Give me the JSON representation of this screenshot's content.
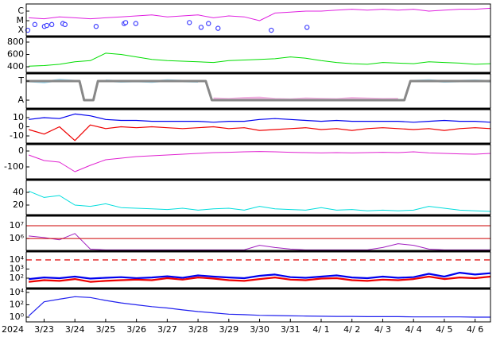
{
  "chart_data": [
    {
      "type": "line",
      "xlim": [
        -0.58,
        14.5
      ],
      "ylim": [
        -3.42,
        -6.75
      ],
      "yticks": [
        {
          "value": -4,
          "label": "X"
        },
        {
          "value": -5,
          "label": "M"
        },
        {
          "value": -6,
          "label": "C"
        }
      ],
      "x": [
        -0.5,
        0,
        0.5,
        1,
        1.5,
        2,
        2.5,
        3,
        3.5,
        4,
        4.5,
        5,
        5.5,
        6,
        6.5,
        7,
        7.5,
        8,
        8.5,
        9,
        9.5,
        10,
        10.5,
        11,
        11.5,
        12,
        12.5,
        13,
        13.5,
        14,
        14.5
      ],
      "series": [
        {
          "color": "#e020e0",
          "values": [
            -5.3,
            -5.2,
            -5.4,
            -5.3,
            -5.2,
            -5.3,
            -5.4,
            -5.5,
            -5.6,
            -5.4,
            -5.5,
            -5.6,
            -5.3,
            -5.5,
            -5.4,
            -5.0,
            -5.8,
            -5.9,
            -6.0,
            -6.0,
            -6.1,
            -6.2,
            -6.1,
            -6.2,
            -6.1,
            -6.2,
            -6.0,
            -6.1,
            -6.2,
            -6.2,
            -6.3
          ]
        },
        {
          "color": "#4040ff",
          "marker": "circle",
          "x": [
            -0.53,
            -0.3,
            0.01,
            0.09,
            0.25,
            0.61,
            0.68,
            1.69,
            2.6,
            2.65,
            2.98,
            4.72,
            5.1,
            5.34,
            5.65,
            7.38,
            8.54
          ],
          "values": [
            -4.0,
            -4.6,
            -4.4,
            -4.5,
            -4.6,
            -4.7,
            -4.6,
            -4.4,
            -4.7,
            -4.8,
            -4.7,
            -4.8,
            -4.3,
            -4.7,
            -4.2,
            -4.0,
            -4.3
          ]
        }
      ]
    },
    {
      "type": "line",
      "xlim": [
        -0.58,
        14.5
      ],
      "ylim": [
        310,
        877
      ],
      "yticks": [
        400,
        600,
        800
      ],
      "x": [
        -0.5,
        0,
        0.5,
        1,
        1.5,
        2,
        2.5,
        3,
        3.5,
        4,
        4.5,
        5,
        5.5,
        6,
        6.5,
        7,
        7.5,
        8,
        8.5,
        9,
        9.5,
        10,
        10.5,
        11,
        11.5,
        12,
        12.5,
        13,
        13.5,
        14,
        14.5
      ],
      "series": [
        {
          "color": "#00dd00",
          "values": [
            410,
            420,
            440,
            480,
            500,
            620,
            600,
            560,
            520,
            500,
            490,
            480,
            470,
            500,
            510,
            520,
            530,
            560,
            540,
            500,
            470,
            450,
            440,
            470,
            460,
            450,
            480,
            470,
            460,
            440,
            450
          ]
        }
      ]
    },
    {
      "type": "line",
      "xlim": [
        -0.58,
        14.5
      ],
      "ylim": [
        -0.417,
        1.375
      ],
      "yticks": [
        {
          "value": 1,
          "label": "T"
        },
        {
          "value": 0,
          "label": "A"
        }
      ],
      "x": [
        -0.5,
        0,
        0.5,
        1,
        1.5,
        2,
        2.5,
        3,
        3.5,
        4,
        4.5,
        5,
        5.5,
        6,
        6.5,
        7,
        7.5,
        8,
        8.5,
        9,
        9.5,
        10,
        10.5,
        11,
        11.5,
        12,
        12.5,
        13,
        13.5,
        14,
        14.5
      ],
      "series": [
        {
          "color": "#9ad8f0",
          "values": [
            1.0,
            0.95,
            1.05,
            1.0,
            null,
            1.02,
            0.98,
            1.0,
            0.97,
            1.03,
            1.0,
            0.98,
            null,
            null,
            null,
            null,
            null,
            null,
            null,
            null,
            null,
            null,
            null,
            null,
            null,
            1.0,
            1.03,
            0.98,
            1.0,
            1.02,
            0.99
          ]
        },
        {
          "color": "#f0b0e0",
          "values": [
            null,
            null,
            null,
            null,
            0.05,
            null,
            null,
            null,
            null,
            null,
            null,
            null,
            0.08,
            0.05,
            0.1,
            0.12,
            0.05,
            0.03,
            0.08,
            0.06,
            0.04,
            0.1,
            0.07,
            0.05,
            0.06,
            null,
            null,
            null,
            null,
            null,
            null
          ]
        },
        {
          "color": "#888888",
          "x": [
            -0.58,
            1.15,
            1.3,
            1.6,
            1.75,
            5.25,
            5.45,
            11.7,
            11.9,
            14.5
          ],
          "values": [
            1,
            1,
            0,
            0,
            1,
            1,
            0,
            0,
            1,
            1
          ]
        }
      ]
    },
    {
      "type": "line",
      "xlim": [
        -0.58,
        14.5
      ],
      "ylim": [
        -17.8,
        18.7
      ],
      "yticks": [
        -10,
        0,
        10
      ],
      "x": [
        -0.5,
        0,
        0.5,
        1,
        1.5,
        2,
        2.5,
        3,
        3.5,
        4,
        4.5,
        5,
        5.5,
        6,
        6.5,
        7,
        7.5,
        8,
        8.5,
        9,
        9.5,
        10,
        10.5,
        11,
        11.5,
        12,
        12.5,
        13,
        13.5,
        14,
        14.5
      ],
      "series": [
        {
          "color": "#0000ee",
          "values": [
            8,
            10,
            9,
            14,
            12,
            8,
            7,
            7,
            6,
            6,
            6,
            6,
            5,
            6,
            6,
            8,
            9,
            8,
            7,
            6,
            7,
            6,
            6,
            6,
            6,
            5,
            6,
            7,
            6,
            6,
            5
          ]
        },
        {
          "color": "#ee0000",
          "values": [
            -3,
            -8,
            0,
            -15,
            2,
            -2,
            0,
            -1,
            0,
            -1,
            -2,
            -1,
            0,
            -2,
            -1,
            -4,
            -3,
            -2,
            -1,
            -3,
            -2,
            -4,
            -2,
            -1,
            -2,
            -3,
            -2,
            -4,
            -2,
            -1,
            -2
          ]
        }
      ]
    },
    {
      "type": "line",
      "xlim": [
        -0.58,
        14.5
      ],
      "ylim": [
        -175,
        40
      ],
      "yticks": [
        -100,
        0
      ],
      "x": [
        -0.5,
        0,
        0.5,
        1,
        1.5,
        2,
        2.5,
        3,
        3.5,
        4,
        4.5,
        5,
        5.5,
        6,
        6.5,
        7,
        7.5,
        8,
        8.5,
        9,
        9.5,
        10,
        10.5,
        11,
        11.5,
        12,
        12.5,
        13,
        13.5,
        14,
        14.5
      ],
      "series": [
        {
          "color": "#e020d0",
          "values": [
            -25,
            -60,
            -70,
            -130,
            -90,
            -55,
            -45,
            -35,
            -30,
            -25,
            -20,
            -15,
            -10,
            -8,
            -5,
            -3,
            -5,
            -8,
            -10,
            -12,
            -10,
            -12,
            -10,
            -8,
            -10,
            -5,
            -12,
            -15,
            -18,
            -20,
            -15
          ]
        }
      ]
    },
    {
      "type": "line",
      "xlim": [
        -0.58,
        14.5
      ],
      "ylim": [
        5,
        58.75
      ],
      "yticks": [
        20,
        40
      ],
      "x": [
        -0.5,
        0,
        0.5,
        1,
        1.5,
        2,
        2.5,
        3,
        3.5,
        4,
        4.5,
        5,
        5.5,
        6,
        6.5,
        7,
        7.5,
        8,
        8.5,
        9,
        9.5,
        10,
        10.5,
        11,
        11.5,
        12,
        12.5,
        13,
        13.5,
        14,
        14.5
      ],
      "series": [
        {
          "color": "#00dddd",
          "values": [
            42,
            32,
            35,
            20,
            18,
            22,
            16,
            15,
            14,
            13,
            15,
            12,
            14,
            15,
            12,
            18,
            14,
            13,
            12,
            16,
            12,
            13,
            11,
            12,
            11,
            12,
            18,
            15,
            12,
            11,
            10
          ]
        }
      ]
    },
    {
      "type": "line",
      "xlim": [
        -0.58,
        14.5
      ],
      "log": true,
      "ylim": [
        120000,
        56000000
      ],
      "yticks": [
        {
          "value": 1000000,
          "label": "10⁶"
        },
        {
          "value": 10000000,
          "label": "10⁷"
        }
      ],
      "grid": true,
      "grid_color": "#cc0000",
      "x": [
        -0.5,
        0,
        0.5,
        1,
        1.5,
        2,
        2.5,
        3,
        3.5,
        4,
        4.5,
        5,
        5.5,
        6,
        6.5,
        7,
        7.5,
        8,
        8.5,
        9,
        9.5,
        10,
        10.5,
        11,
        11.5,
        12,
        12.5,
        13,
        13.5,
        14,
        14.5
      ],
      "series": [
        {
          "color": "#a020c0",
          "values": [
            1600000,
            1200000,
            800000,
            2500000,
            150000,
            130000,
            130000,
            130000,
            130000,
            130000,
            130000,
            130000,
            130000,
            130000,
            130000,
            300000,
            200000,
            150000,
            130000,
            130000,
            130000,
            130000,
            130000,
            200000,
            400000,
            300000,
            150000,
            130000,
            130000,
            130000,
            130000
          ]
        }
      ]
    },
    {
      "type": "line",
      "xlim": [
        -0.58,
        14.5
      ],
      "log": true,
      "ylim": [
        9,
        74000
      ],
      "yticks": [
        {
          "value": 100,
          "label": "10²"
        },
        {
          "value": 1000,
          "label": "10³"
        },
        {
          "value": 10000,
          "label": "10⁴"
        }
      ],
      "threshold": 10000,
      "threshold_color": "#dd0000",
      "x": [
        -0.5,
        0,
        0.5,
        1,
        1.5,
        2,
        2.5,
        3,
        3.5,
        4,
        4.5,
        5,
        5.5,
        6,
        6.5,
        7,
        7.5,
        8,
        8.5,
        9,
        9.5,
        10,
        10.5,
        11,
        11.5,
        12,
        12.5,
        13,
        13.5,
        14,
        14.5
      ],
      "series": [
        {
          "color": "#0000ee",
          "values": [
            80,
            120,
            100,
            150,
            90,
            110,
            130,
            100,
            120,
            160,
            110,
            200,
            150,
            120,
            100,
            180,
            250,
            130,
            110,
            150,
            200,
            120,
            100,
            150,
            110,
            130,
            300,
            150,
            400,
            250,
            350
          ]
        },
        {
          "color": "#ee0000",
          "values": [
            40,
            60,
            50,
            80,
            40,
            50,
            60,
            70,
            60,
            100,
            70,
            120,
            90,
            60,
            50,
            80,
            120,
            70,
            60,
            90,
            100,
            60,
            50,
            70,
            60,
            80,
            150,
            80,
            120,
            100,
            150
          ]
        }
      ]
    },
    {
      "type": "line",
      "xlim": [
        -0.58,
        14.5
      ],
      "log": true,
      "ylim": [
        0.17,
        31600
      ],
      "yticks": [
        {
          "value": 1,
          "label": "10⁰"
        },
        {
          "value": 100,
          "label": "10²"
        },
        {
          "value": 10000,
          "label": "10⁴"
        }
      ],
      "year": "2024",
      "xticks": [
        {
          "value": 0,
          "label": "3/23"
        },
        {
          "value": 1,
          "label": "3/24"
        },
        {
          "value": 2,
          "label": "3/25"
        },
        {
          "value": 3,
          "label": "3/26"
        },
        {
          "value": 4,
          "label": "3/27"
        },
        {
          "value": 5,
          "label": "3/28"
        },
        {
          "value": 6,
          "label": "3/29"
        },
        {
          "value": 7,
          "label": "3/30"
        },
        {
          "value": 8,
          "label": "3/31"
        },
        {
          "value": 9,
          "label": "4/ 1"
        },
        {
          "value": 10,
          "label": "4/ 2"
        },
        {
          "value": 11,
          "label": "4/ 3"
        },
        {
          "value": 12,
          "label": "4/ 4"
        },
        {
          "value": 13,
          "label": "4/ 5"
        },
        {
          "value": 14,
          "label": "4/ 6"
        }
      ],
      "x": [
        -0.5,
        0,
        0.5,
        1,
        1.5,
        2,
        2.5,
        3,
        3.5,
        4,
        4.5,
        5,
        5.5,
        6,
        6.5,
        7,
        7.5,
        8,
        8.5,
        9,
        9.5,
        10,
        10.5,
        11,
        11.5,
        12,
        12.5,
        13,
        13.5,
        14,
        14.5
      ],
      "series": [
        {
          "color": "#2020ee",
          "values": [
            1.5,
            300,
            800,
            2000,
            1500,
            500,
            200,
            100,
            50,
            30,
            15,
            8,
            5,
            3,
            2.5,
            2,
            1.8,
            1.6,
            1.5,
            1.4,
            1.3,
            1.3,
            1.2,
            1.2,
            1.2,
            1.1,
            1.1,
            1.1,
            1.1,
            1.0,
            1.0
          ]
        }
      ]
    }
  ]
}
